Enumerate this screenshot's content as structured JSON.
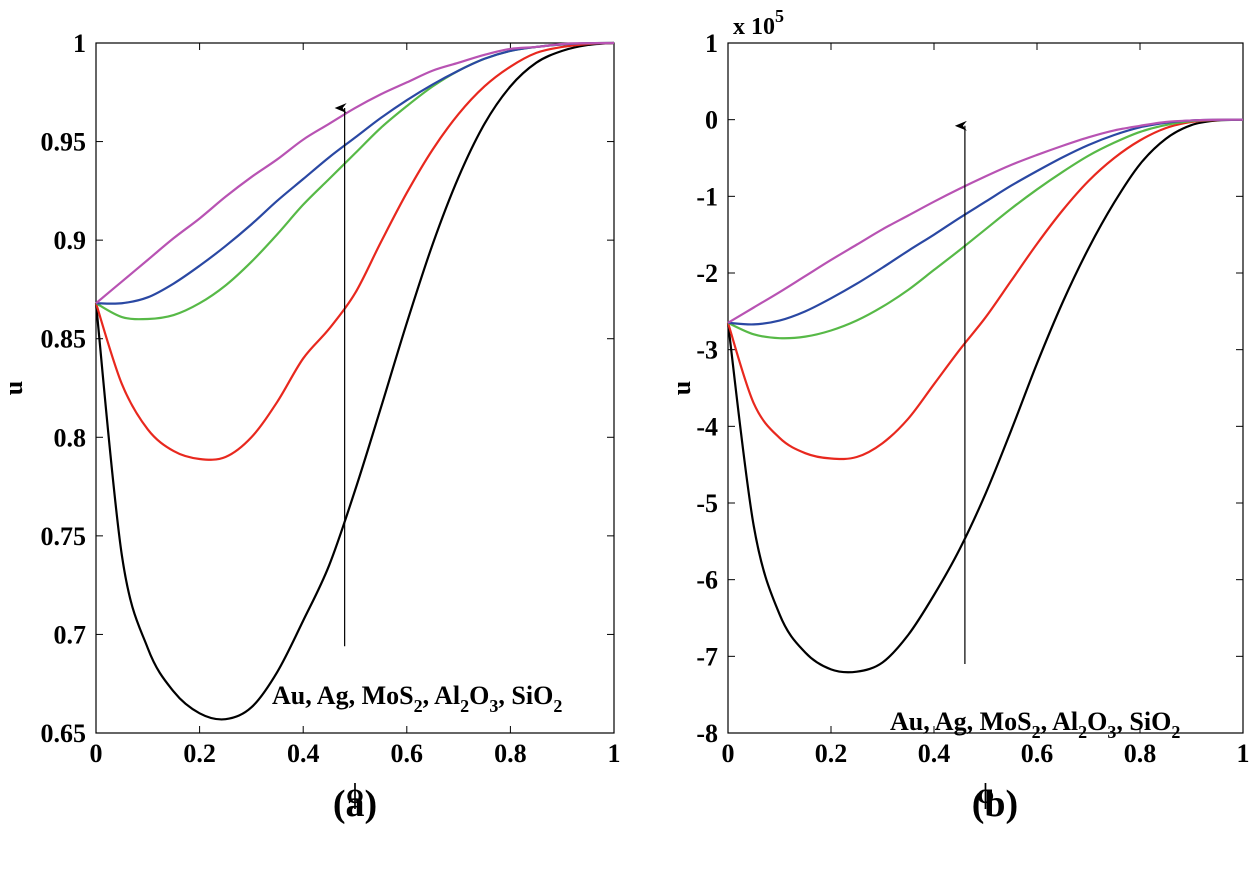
{
  "chart_data": [
    {
      "type": "line",
      "panel_label": "(a)",
      "xlabel": "ϕ",
      "ylabel": "u",
      "xlim": [
        0,
        1
      ],
      "ylim": [
        0.65,
        1
      ],
      "x_ticks": [
        "0",
        "0.2",
        "0.4",
        "0.6",
        "0.8",
        "1"
      ],
      "y_ticks": [
        "0.65",
        "0.7",
        "0.75",
        "0.8",
        "0.85",
        "0.9",
        "0.95",
        "1"
      ],
      "annotation": {
        "parts": [
          "Au, Ag, MoS",
          "2",
          ", Al",
          "2",
          "O",
          "3",
          ", SiO",
          "2"
        ]
      },
      "arrow": {
        "x": 0.48,
        "y_from": 0.694,
        "y_to": 0.967
      },
      "x": [
        0,
        0.05,
        0.1,
        0.15,
        0.2,
        0.25,
        0.3,
        0.35,
        0.4,
        0.45,
        0.5,
        0.55,
        0.6,
        0.65,
        0.7,
        0.75,
        0.8,
        0.85,
        0.9,
        0.95,
        1
      ],
      "series": [
        {
          "name": "Au",
          "color": "#000000",
          "values": [
            0.868,
            0.74,
            0.693,
            0.671,
            0.66,
            0.657,
            0.663,
            0.681,
            0.707,
            0.735,
            0.773,
            0.815,
            0.858,
            0.898,
            0.932,
            0.959,
            0.978,
            0.99,
            0.996,
            0.999,
            1.0
          ]
        },
        {
          "name": "Ag",
          "color": "#e8281e",
          "values": [
            0.868,
            0.827,
            0.804,
            0.793,
            0.789,
            0.79,
            0.8,
            0.818,
            0.84,
            0.855,
            0.873,
            0.899,
            0.924,
            0.946,
            0.964,
            0.978,
            0.988,
            0.995,
            0.998,
            0.9995,
            1.0
          ]
        },
        {
          "name": "MoS2",
          "color": "#57b947",
          "values": [
            0.868,
            0.861,
            0.86,
            0.862,
            0.868,
            0.877,
            0.889,
            0.903,
            0.918,
            0.931,
            0.944,
            0.957,
            0.968,
            0.978,
            0.986,
            0.992,
            0.996,
            0.998,
            0.9993,
            0.9999,
            1.0
          ]
        },
        {
          "name": "Al2O3",
          "color": "#2a48a3",
          "values": [
            0.868,
            0.868,
            0.871,
            0.878,
            0.887,
            0.897,
            0.908,
            0.92,
            0.931,
            0.942,
            0.952,
            0.962,
            0.971,
            0.979,
            0.986,
            0.992,
            0.996,
            0.998,
            0.9993,
            0.9999,
            1.0
          ]
        },
        {
          "name": "SiO2",
          "color": "#b853b3",
          "values": [
            0.868,
            0.879,
            0.89,
            0.901,
            0.911,
            0.922,
            0.932,
            0.941,
            0.951,
            0.959,
            0.967,
            0.974,
            0.98,
            0.986,
            0.99,
            0.994,
            0.997,
            0.998,
            0.9995,
            0.9999,
            1.0
          ]
        }
      ]
    },
    {
      "type": "line",
      "panel_label": "(b)",
      "xlabel": "ϕ",
      "ylabel": "u",
      "multiplier": {
        "base": "x 10",
        "exp": "5"
      },
      "xlim": [
        0,
        1
      ],
      "ylim": [
        -8,
        1
      ],
      "x_ticks": [
        "0",
        "0.2",
        "0.4",
        "0.6",
        "0.8",
        "1"
      ],
      "y_ticks": [
        "-8",
        "-7",
        "-6",
        "-5",
        "-4",
        "-3",
        "-2",
        "-1",
        "0",
        "1"
      ],
      "annotation": {
        "parts": [
          "Au, Ag, MoS",
          "2",
          ", Al",
          "2",
          "O",
          "3",
          ", SiO",
          "2"
        ]
      },
      "arrow": {
        "x": 0.46,
        "y_from": -7.1,
        "y_to": -0.08
      },
      "x": [
        0,
        0.05,
        0.1,
        0.15,
        0.2,
        0.25,
        0.3,
        0.35,
        0.4,
        0.45,
        0.5,
        0.55,
        0.6,
        0.65,
        0.7,
        0.75,
        0.8,
        0.85,
        0.9,
        0.95,
        1
      ],
      "series": [
        {
          "name": "Au",
          "color": "#000000",
          "values": [
            -2.65,
            -5.3,
            -6.45,
            -6.95,
            -7.17,
            -7.2,
            -7.08,
            -6.72,
            -6.2,
            -5.6,
            -4.88,
            -4.05,
            -3.18,
            -2.38,
            -1.68,
            -1.08,
            -0.58,
            -0.25,
            -0.07,
            -0.01,
            0
          ]
        },
        {
          "name": "Ag",
          "color": "#e8281e",
          "values": [
            -2.65,
            -3.7,
            -4.15,
            -4.35,
            -4.42,
            -4.4,
            -4.22,
            -3.9,
            -3.45,
            -3.0,
            -2.58,
            -2.1,
            -1.62,
            -1.18,
            -0.8,
            -0.5,
            -0.27,
            -0.11,
            -0.03,
            -0.005,
            0
          ]
        },
        {
          "name": "MoS2",
          "color": "#57b947",
          "values": [
            -2.65,
            -2.8,
            -2.85,
            -2.83,
            -2.75,
            -2.62,
            -2.44,
            -2.22,
            -1.96,
            -1.7,
            -1.43,
            -1.16,
            -0.91,
            -0.68,
            -0.47,
            -0.3,
            -0.16,
            -0.07,
            -0.02,
            -0.003,
            0
          ]
        },
        {
          "name": "Al2O3",
          "color": "#2a48a3",
          "values": [
            -2.65,
            -2.67,
            -2.62,
            -2.5,
            -2.33,
            -2.14,
            -1.93,
            -1.71,
            -1.5,
            -1.28,
            -1.07,
            -0.86,
            -0.67,
            -0.49,
            -0.33,
            -0.2,
            -0.1,
            -0.04,
            -0.01,
            -0.002,
            0
          ]
        },
        {
          "name": "SiO2",
          "color": "#b853b3",
          "values": [
            -2.65,
            -2.45,
            -2.25,
            -2.04,
            -1.83,
            -1.63,
            -1.43,
            -1.25,
            -1.07,
            -0.9,
            -0.74,
            -0.59,
            -0.46,
            -0.34,
            -0.23,
            -0.14,
            -0.08,
            -0.03,
            -0.01,
            -0.001,
            0
          ]
        }
      ]
    }
  ]
}
